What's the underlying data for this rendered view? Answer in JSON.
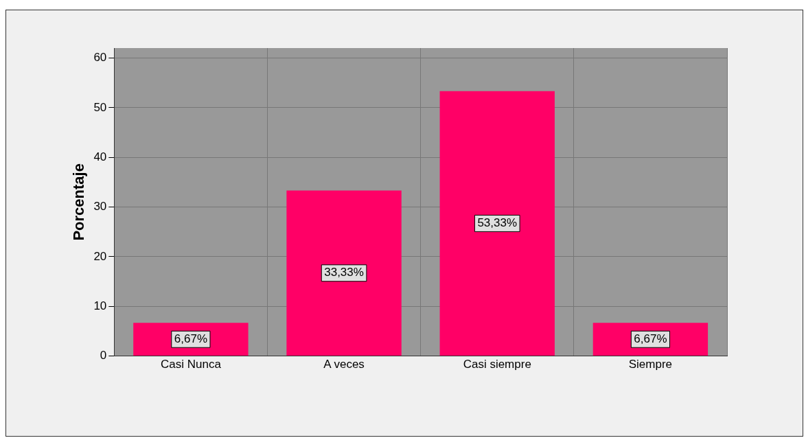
{
  "chart_data": {
    "type": "bar",
    "ylabel": "Porcentaje",
    "categories": [
      "Casi Nunca",
      "A veces",
      "Casi siempre",
      "Siempre"
    ],
    "values": [
      6.67,
      33.33,
      53.33,
      6.67
    ],
    "value_labels": [
      "6,67%",
      "33,33%",
      "53,33%",
      "6,67%"
    ],
    "color": "#ff0066",
    "ylim": [
      0,
      62
    ],
    "yticks": [
      0,
      10,
      20,
      30,
      40,
      50,
      60
    ],
    "grid": true,
    "legend": false
  }
}
